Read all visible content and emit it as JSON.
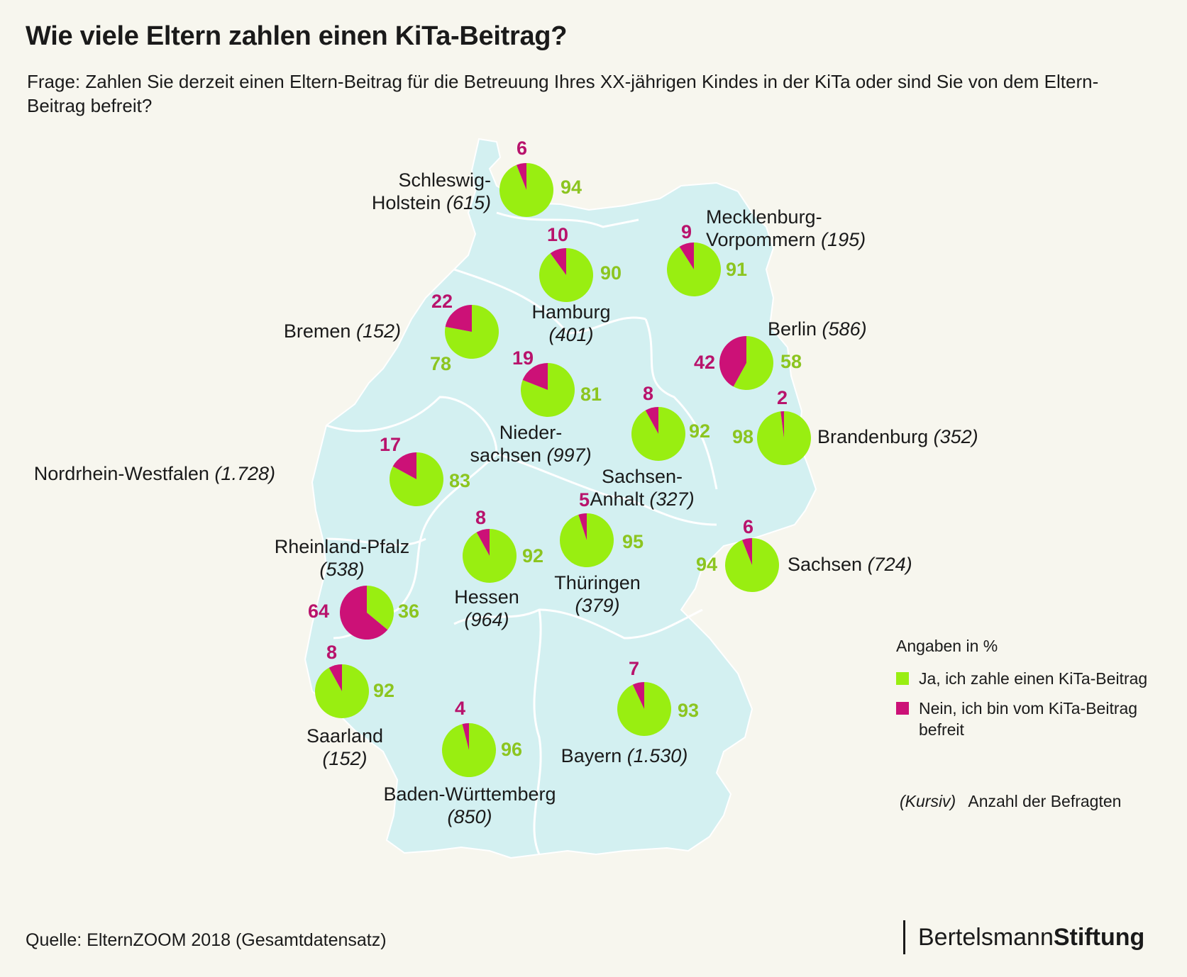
{
  "title": "Wie viele Eltern zahlen einen KiTa-Beitrag?",
  "question": "Frage: Zahlen Sie derzeit einen Eltern-Beitrag für die Betreuung Ihres XX-jährigen Kindes in der KiTa oder sind Sie von dem Eltern-Beitrag befreit?",
  "colors": {
    "yes": "#99ee11",
    "no": "#cc1177",
    "map_fill": "#d3f0f1",
    "border": "#ffffff"
  },
  "regions": [
    {
      "id": "sh",
      "name": [
        "Schleswig-",
        "Holstein"
      ],
      "count": "(615)",
      "yes": 94,
      "no": 6
    },
    {
      "id": "hh",
      "name": [
        "Hamburg"
      ],
      "count": "(401)",
      "yes": 90,
      "no": 10
    },
    {
      "id": "mv",
      "name": [
        "Mecklenburg-",
        "Vorpommern"
      ],
      "count": "(195)",
      "yes": 91,
      "no": 9
    },
    {
      "id": "hb",
      "name": [
        "Bremen"
      ],
      "count": "(152)",
      "yes": 78,
      "no": 22
    },
    {
      "id": "be",
      "name": [
        "Berlin"
      ],
      "count": "(586)",
      "yes": 58,
      "no": 42
    },
    {
      "id": "ni",
      "name": [
        "Nieder-",
        "sachsen"
      ],
      "count": "(997)",
      "yes": 81,
      "no": 19
    },
    {
      "id": "st",
      "name": [
        "Sachsen-",
        "Anhalt"
      ],
      "count": "(327)",
      "yes": 92,
      "no": 8
    },
    {
      "id": "bb",
      "name": [
        "Brandenburg"
      ],
      "count": "(352)",
      "yes": 98,
      "no": 2
    },
    {
      "id": "nw",
      "name": [
        "Nordrhein-Westfalen"
      ],
      "count": "(1.728)",
      "yes": 83,
      "no": 17
    },
    {
      "id": "he",
      "name": [
        "Hessen"
      ],
      "count": "(964)",
      "yes": 92,
      "no": 8
    },
    {
      "id": "th",
      "name": [
        "Thüringen"
      ],
      "count": "(379)",
      "yes": 95,
      "no": 5
    },
    {
      "id": "sn",
      "name": [
        "Sachsen"
      ],
      "count": "(724)",
      "yes": 94,
      "no": 6
    },
    {
      "id": "rp",
      "name": [
        "Rheinland-Pfalz"
      ],
      "count": "(538)",
      "yes": 36,
      "no": 64
    },
    {
      "id": "sl",
      "name": [
        "Saarland"
      ],
      "count": "(152)",
      "yes": 92,
      "no": 8
    },
    {
      "id": "bw",
      "name": [
        "Baden-Württemberg"
      ],
      "count": "(850)",
      "yes": 96,
      "no": 4
    },
    {
      "id": "by",
      "name": [
        "Bayern"
      ],
      "count": "(1.530)",
      "yes": 93,
      "no": 7
    }
  ],
  "legend": {
    "title": "Angaben in %",
    "yes_label": "Ja, ich zahle einen KiTa-Beitrag",
    "no_label_1": "Nein, ich bin vom KiTa-Beitrag",
    "no_label_2": "befreit",
    "note_key": "(Kursiv)",
    "note_text": "Anzahl der Befragten"
  },
  "source": "Quelle: ElternZOOM 2018 (Gesamtdatensatz)",
  "logo": {
    "part1": "Bertelsmann",
    "part2": "Stiftung"
  }
}
